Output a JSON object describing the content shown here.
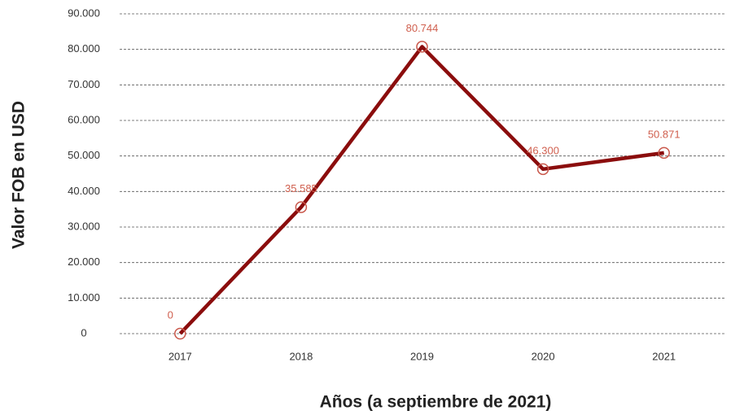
{
  "chart_data": {
    "type": "line",
    "x_label": "Años (a septiembre de 2021)",
    "y_label": "Valor FOB en USD",
    "categories": [
      "2017",
      "2018",
      "2019",
      "2020",
      "2021"
    ],
    "values": [
      0,
      35585,
      80744,
      46300,
      50871
    ],
    "value_labels": [
      "0",
      "35.585",
      "80.744",
      "46.300",
      "50.871"
    ],
    "color": "#8b0d0d",
    "marker_color": "#c9574a",
    "ylim": [
      0,
      90000
    ],
    "yticks": [
      0,
      {
        "value": 10000,
        "label": "10.000"
      },
      {
        "value": 20000,
        "label": "20.000"
      },
      {
        "value": 30000,
        "label": "30.000"
      },
      {
        "value": 40000,
        "label": "40.000"
      },
      {
        "value": 50000,
        "label": "50.000"
      },
      {
        "value": 60000,
        "label": "60.000"
      },
      {
        "value": 70000,
        "label": "70.000"
      },
      {
        "value": 80000,
        "label": "80.000"
      },
      {
        "value": 90000,
        "label": "90.000"
      }
    ],
    "grid": true
  }
}
